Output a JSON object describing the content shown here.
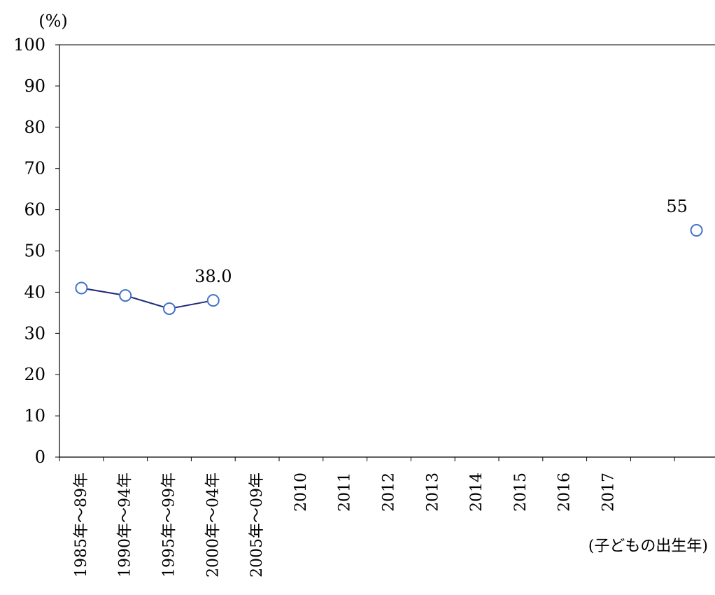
{
  "chart_data": {
    "type": "line",
    "unit_label": "(%)",
    "xlabel": "(子どもの出生年)",
    "ylim": [
      0,
      100
    ],
    "yticks": [
      0,
      10,
      20,
      30,
      40,
      50,
      60,
      70,
      80,
      90,
      100
    ],
    "categories": [
      "1985年～89年",
      "1990年～94年",
      "1995年～99年",
      "2000年～04年",
      "2005年～09年",
      "2010",
      "2011",
      "2012",
      "2013",
      "2014",
      "2015",
      "2016",
      "2017",
      "",
      ""
    ],
    "series": [
      {
        "values": [
          41.0,
          39.2,
          36.0,
          38.0,
          null,
          null,
          null,
          null,
          null,
          null,
          null,
          null,
          null,
          null,
          55
        ],
        "data_labels": [
          {
            "index": 3,
            "text": "38.0"
          },
          {
            "index": 14,
            "text": "55"
          }
        ],
        "color": "#4472c4",
        "line_color": "#1f2a7a"
      }
    ],
    "segments": [
      [
        0,
        3
      ]
    ],
    "grid": false,
    "legend": "none"
  }
}
